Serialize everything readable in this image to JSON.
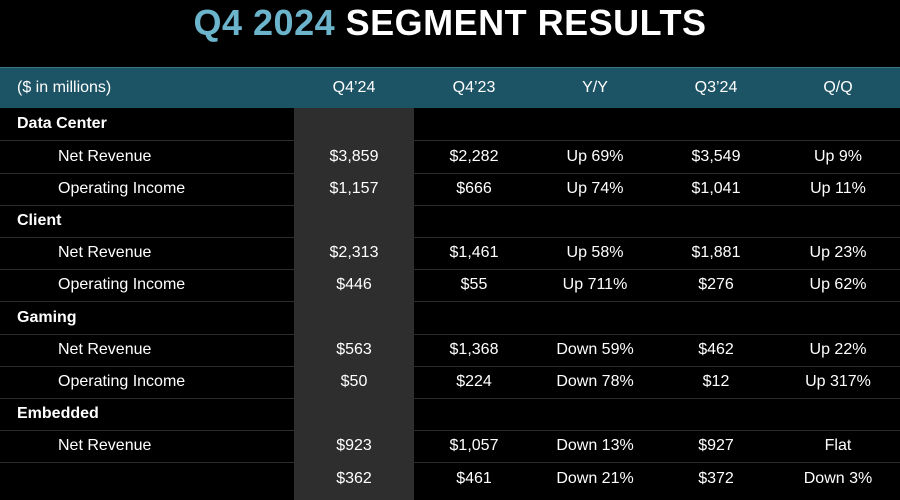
{
  "title": {
    "accent": "Q4 2024",
    "rest": "SEGMENT RESULTS"
  },
  "header": [
    "($ in millions)",
    "Q4’24",
    "Q4’23",
    "Y/Y",
    "Q3’24",
    "Q/Q"
  ],
  "segments": [
    {
      "name": "Data Center",
      "rows": [
        {
          "label": "Net Revenue",
          "q4_24": "$3,859",
          "q4_23": "$2,282",
          "yy": "Up 69%",
          "q3_24": "$3,549",
          "qq": "Up 9%"
        },
        {
          "label": "Operating Income",
          "q4_24": "$1,157",
          "q4_23": "$666",
          "yy": "Up 74%",
          "q3_24": "$1,041",
          "qq": "Up 11%"
        }
      ]
    },
    {
      "name": "Client",
      "rows": [
        {
          "label": "Net Revenue",
          "q4_24": "$2,313",
          "q4_23": "$1,461",
          "yy": "Up 58%",
          "q3_24": "$1,881",
          "qq": "Up 23%"
        },
        {
          "label": "Operating Income",
          "q4_24": "$446",
          "q4_23": "$55",
          "yy": "Up 711%",
          "q3_24": "$276",
          "qq": "Up 62%"
        }
      ]
    },
    {
      "name": "Gaming",
      "rows": [
        {
          "label": "Net Revenue",
          "q4_24": "$563",
          "q4_23": "$1,368",
          "yy": "Down 59%",
          "q3_24": "$462",
          "qq": "Up 22%"
        },
        {
          "label": "Operating Income",
          "q4_24": "$50",
          "q4_23": "$224",
          "yy": "Down 78%",
          "q3_24": "$12",
          "qq": "Up 317%"
        }
      ]
    },
    {
      "name": "Embedded",
      "rows": [
        {
          "label": "Net Revenue",
          "q4_24": "$923",
          "q4_23": "$1,057",
          "yy": "Down 13%",
          "q3_24": "$927",
          "qq": "Flat"
        },
        {
          "label": "",
          "q4_24": "$362",
          "q4_23": "$461",
          "yy": "Down 21%",
          "q3_24": "$372",
          "qq": "Down 3%"
        }
      ]
    }
  ]
}
